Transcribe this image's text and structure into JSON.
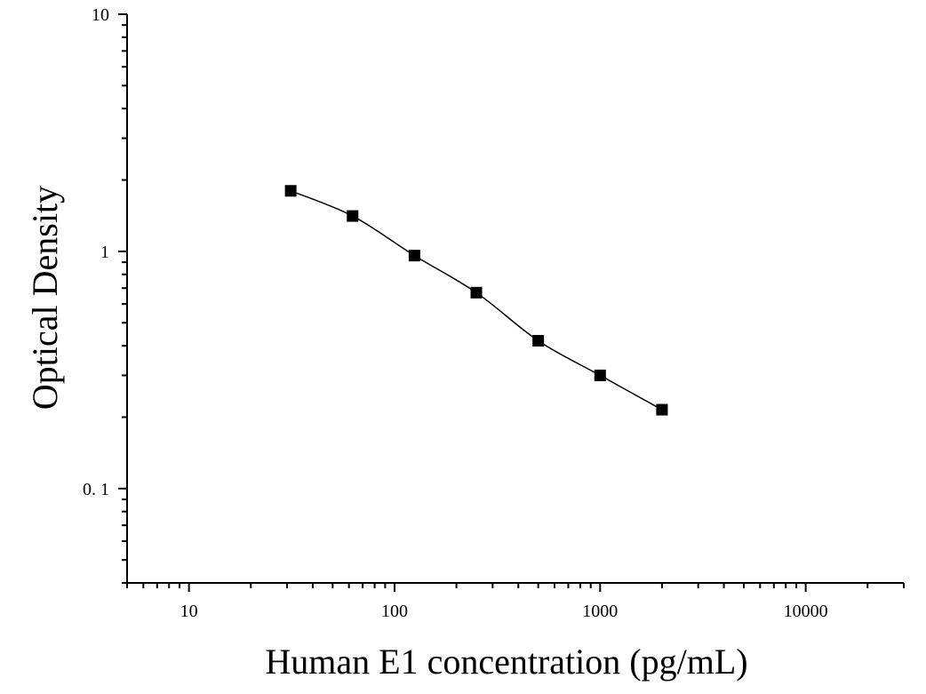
{
  "chart_data": {
    "type": "scatter",
    "title": "",
    "xlabel": "Human E1 concentration (pg/mL)",
    "ylabel": "Optical Density",
    "x_scale": "log",
    "y_scale": "log",
    "xlim": [
      5,
      30000
    ],
    "ylim": [
      0.04,
      10
    ],
    "x_ticks": [
      {
        "value": 10,
        "label": "10"
      },
      {
        "value": 100,
        "label": "100"
      },
      {
        "value": 1000,
        "label": "1000"
      },
      {
        "value": 10000,
        "label": "10000"
      }
    ],
    "y_ticks": [
      {
        "value": 0.1,
        "label": "0. 1"
      },
      {
        "value": 1,
        "label": "1"
      },
      {
        "value": 10,
        "label": "10"
      }
    ],
    "grid": false,
    "legend": "none",
    "marker": "square",
    "marker_color": "#000000",
    "line_color": "#000000",
    "series": [
      {
        "x": [
          31.25,
          62.5,
          125,
          250,
          500,
          1000,
          2000
        ],
        "y": [
          1.8,
          1.41,
          0.96,
          0.67,
          0.42,
          0.3,
          0.215
        ]
      }
    ],
    "fitted_curve": true
  }
}
